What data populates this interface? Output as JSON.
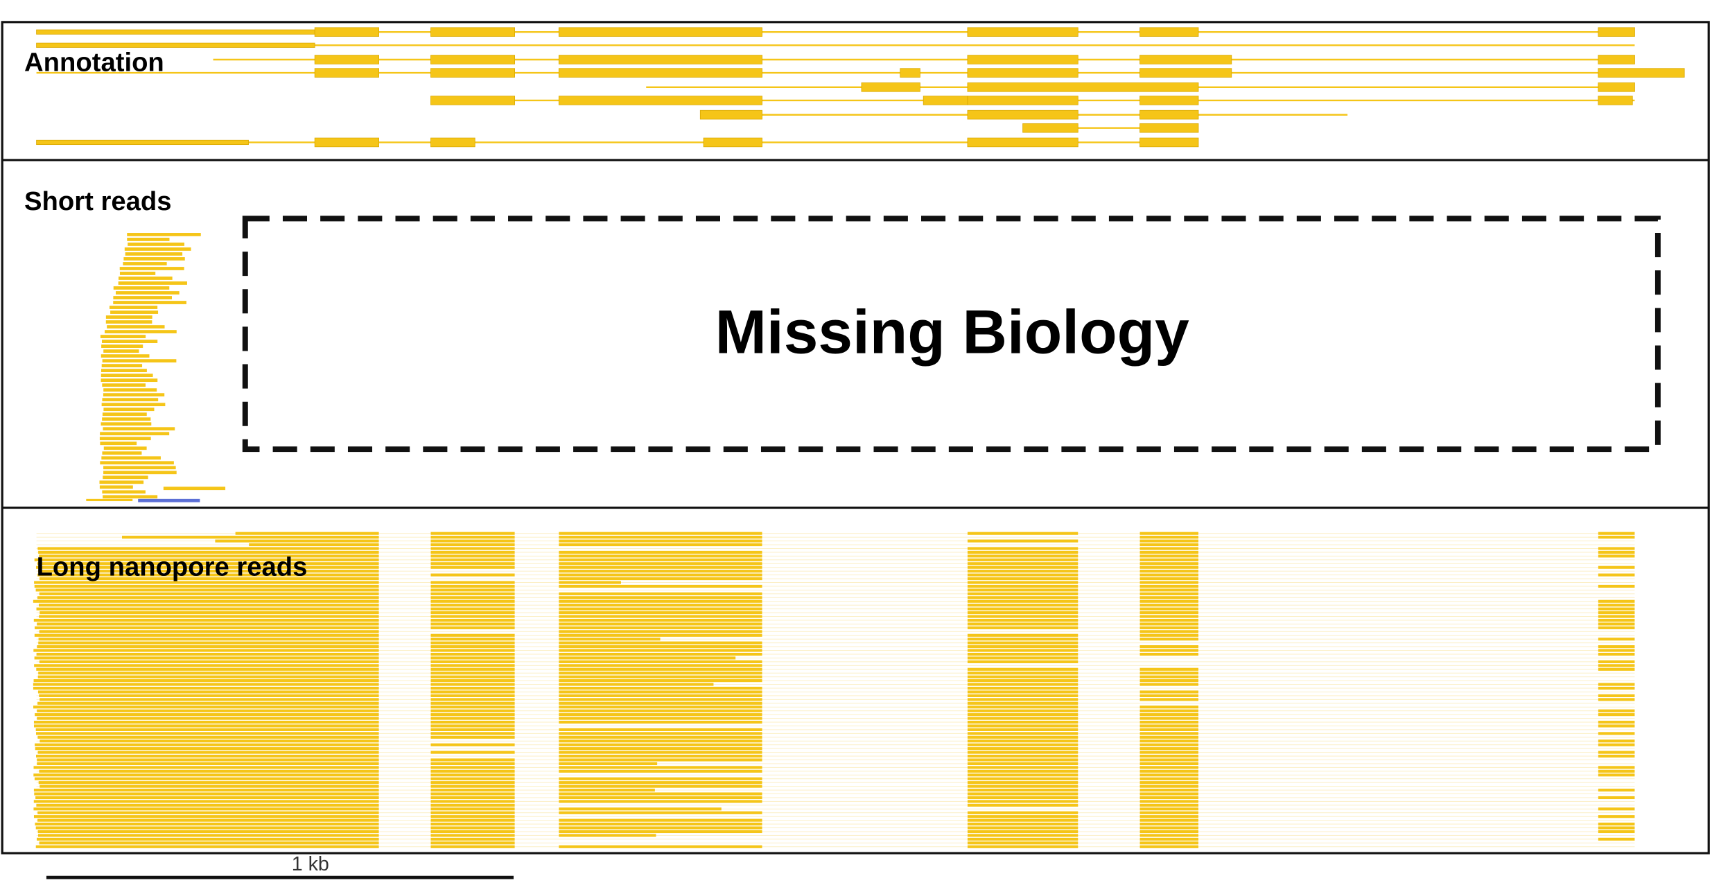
{
  "panels": [
    {
      "title": "Annotation"
    },
    {
      "title": "Short reads",
      "annotation": "Missing Biology"
    },
    {
      "title": "Long nanopore reads"
    }
  ],
  "scale_bar": {
    "label": "1 kb"
  }
}
